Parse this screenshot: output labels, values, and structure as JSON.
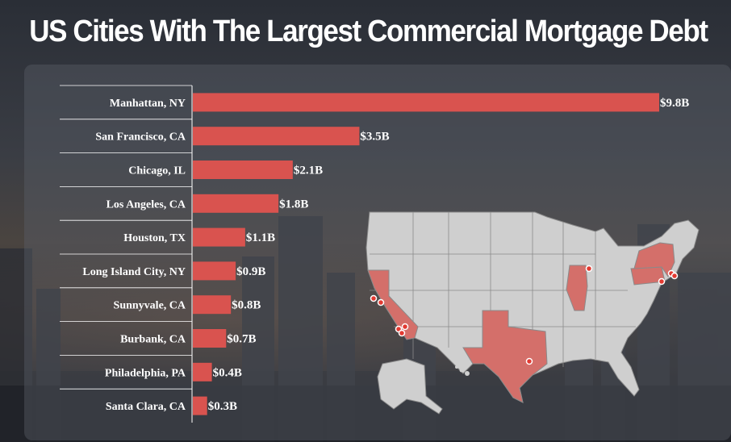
{
  "page": {
    "title": "US Cities With The Largest Commercial Mortgage Debt"
  },
  "colors": {
    "bar": "#d9534f",
    "highlight_state": "#d46f6a",
    "map_fill": "#cfcfcf",
    "text": "#ffffff"
  },
  "chart_data": {
    "type": "bar",
    "orientation": "horizontal",
    "title": "US Cities With The Largest Commercial Mortgage Debt",
    "categories": [
      "Manhattan, NY",
      "San Francisco, CA",
      "Chicago, IL",
      "Los Angeles, CA",
      "Houston, TX",
      "Long Island City, NY",
      "Sunnyvale, CA",
      "Burbank, CA",
      "Philadelphia, PA",
      "Santa Clara, CA"
    ],
    "values": [
      9.8,
      3.5,
      2.1,
      1.8,
      1.1,
      0.9,
      0.8,
      0.7,
      0.4,
      0.3
    ],
    "value_labels": [
      "$9.8B",
      "$3.5B",
      "$2.1B",
      "$1.8B",
      "$1.1B",
      "$0.9B",
      "$0.8B",
      "$0.7B",
      "$0.4B",
      "$0.3B"
    ],
    "xlim": [
      0,
      9.8
    ],
    "grid": false,
    "legend": "none"
  },
  "map": {
    "description_icon": "us-map-icon",
    "highlighted_states": [
      "California",
      "Texas",
      "Illinois",
      "New York",
      "Pennsylvania"
    ]
  }
}
